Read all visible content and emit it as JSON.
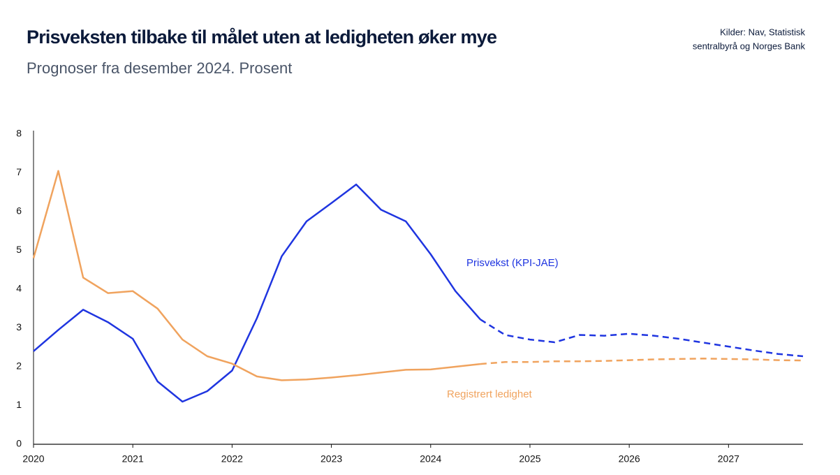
{
  "chart_data": {
    "type": "line",
    "title": "Prisveksten tilbake til målet uten at ledigheten øker mye",
    "subtitle": "Prognoser fra desember 2024. Prosent",
    "source": [
      "Kilder: Nav, Statistisk",
      "sentralbyrå og Norges Bank"
    ],
    "x": [
      2020,
      2020.25,
      2020.5,
      2020.75,
      2021,
      2021.25,
      2021.5,
      2021.75,
      2022,
      2022.25,
      2022.5,
      2022.75,
      2023,
      2023.25,
      2023.5,
      2023.75,
      2024,
      2024.25,
      2024.5,
      2024.75,
      2025,
      2025.25,
      2025.5,
      2025.75,
      2026,
      2026.25,
      2026.5,
      2026.75,
      2027,
      2027.25,
      2027.5,
      2027.75
    ],
    "forecast_start": 2024.5,
    "series": [
      {
        "name": "Prisvekst (KPI-JAE)",
        "color": "#1f35e0",
        "values": [
          2.4,
          2.95,
          3.47,
          3.15,
          2.72,
          1.62,
          1.1,
          1.37,
          1.9,
          3.25,
          4.85,
          5.75,
          6.22,
          6.7,
          6.05,
          5.75,
          4.9,
          3.95,
          3.22,
          2.82,
          2.7,
          2.63,
          2.82,
          2.8,
          2.85,
          2.8,
          2.72,
          2.62,
          2.52,
          2.42,
          2.33,
          2.27
        ]
      },
      {
        "name": "Registrert ledighet",
        "color": "#f0a35e",
        "values": [
          4.8,
          7.05,
          4.3,
          3.9,
          3.95,
          3.5,
          2.7,
          2.27,
          2.08,
          1.75,
          1.65,
          1.67,
          1.72,
          1.78,
          1.85,
          1.92,
          1.93,
          2.0,
          2.07,
          2.12,
          2.12,
          2.14,
          2.14,
          2.15,
          2.17,
          2.19,
          2.2,
          2.21,
          2.2,
          2.19,
          2.17,
          2.16
        ]
      }
    ],
    "xlim": [
      2020,
      2027.75
    ],
    "xticks": [
      2020,
      2021,
      2022,
      2023,
      2024,
      2025,
      2026,
      2027
    ],
    "ylim": [
      0,
      8
    ],
    "yticks": [
      0,
      1,
      2,
      3,
      4,
      5,
      6,
      7,
      8
    ],
    "grid": false
  }
}
